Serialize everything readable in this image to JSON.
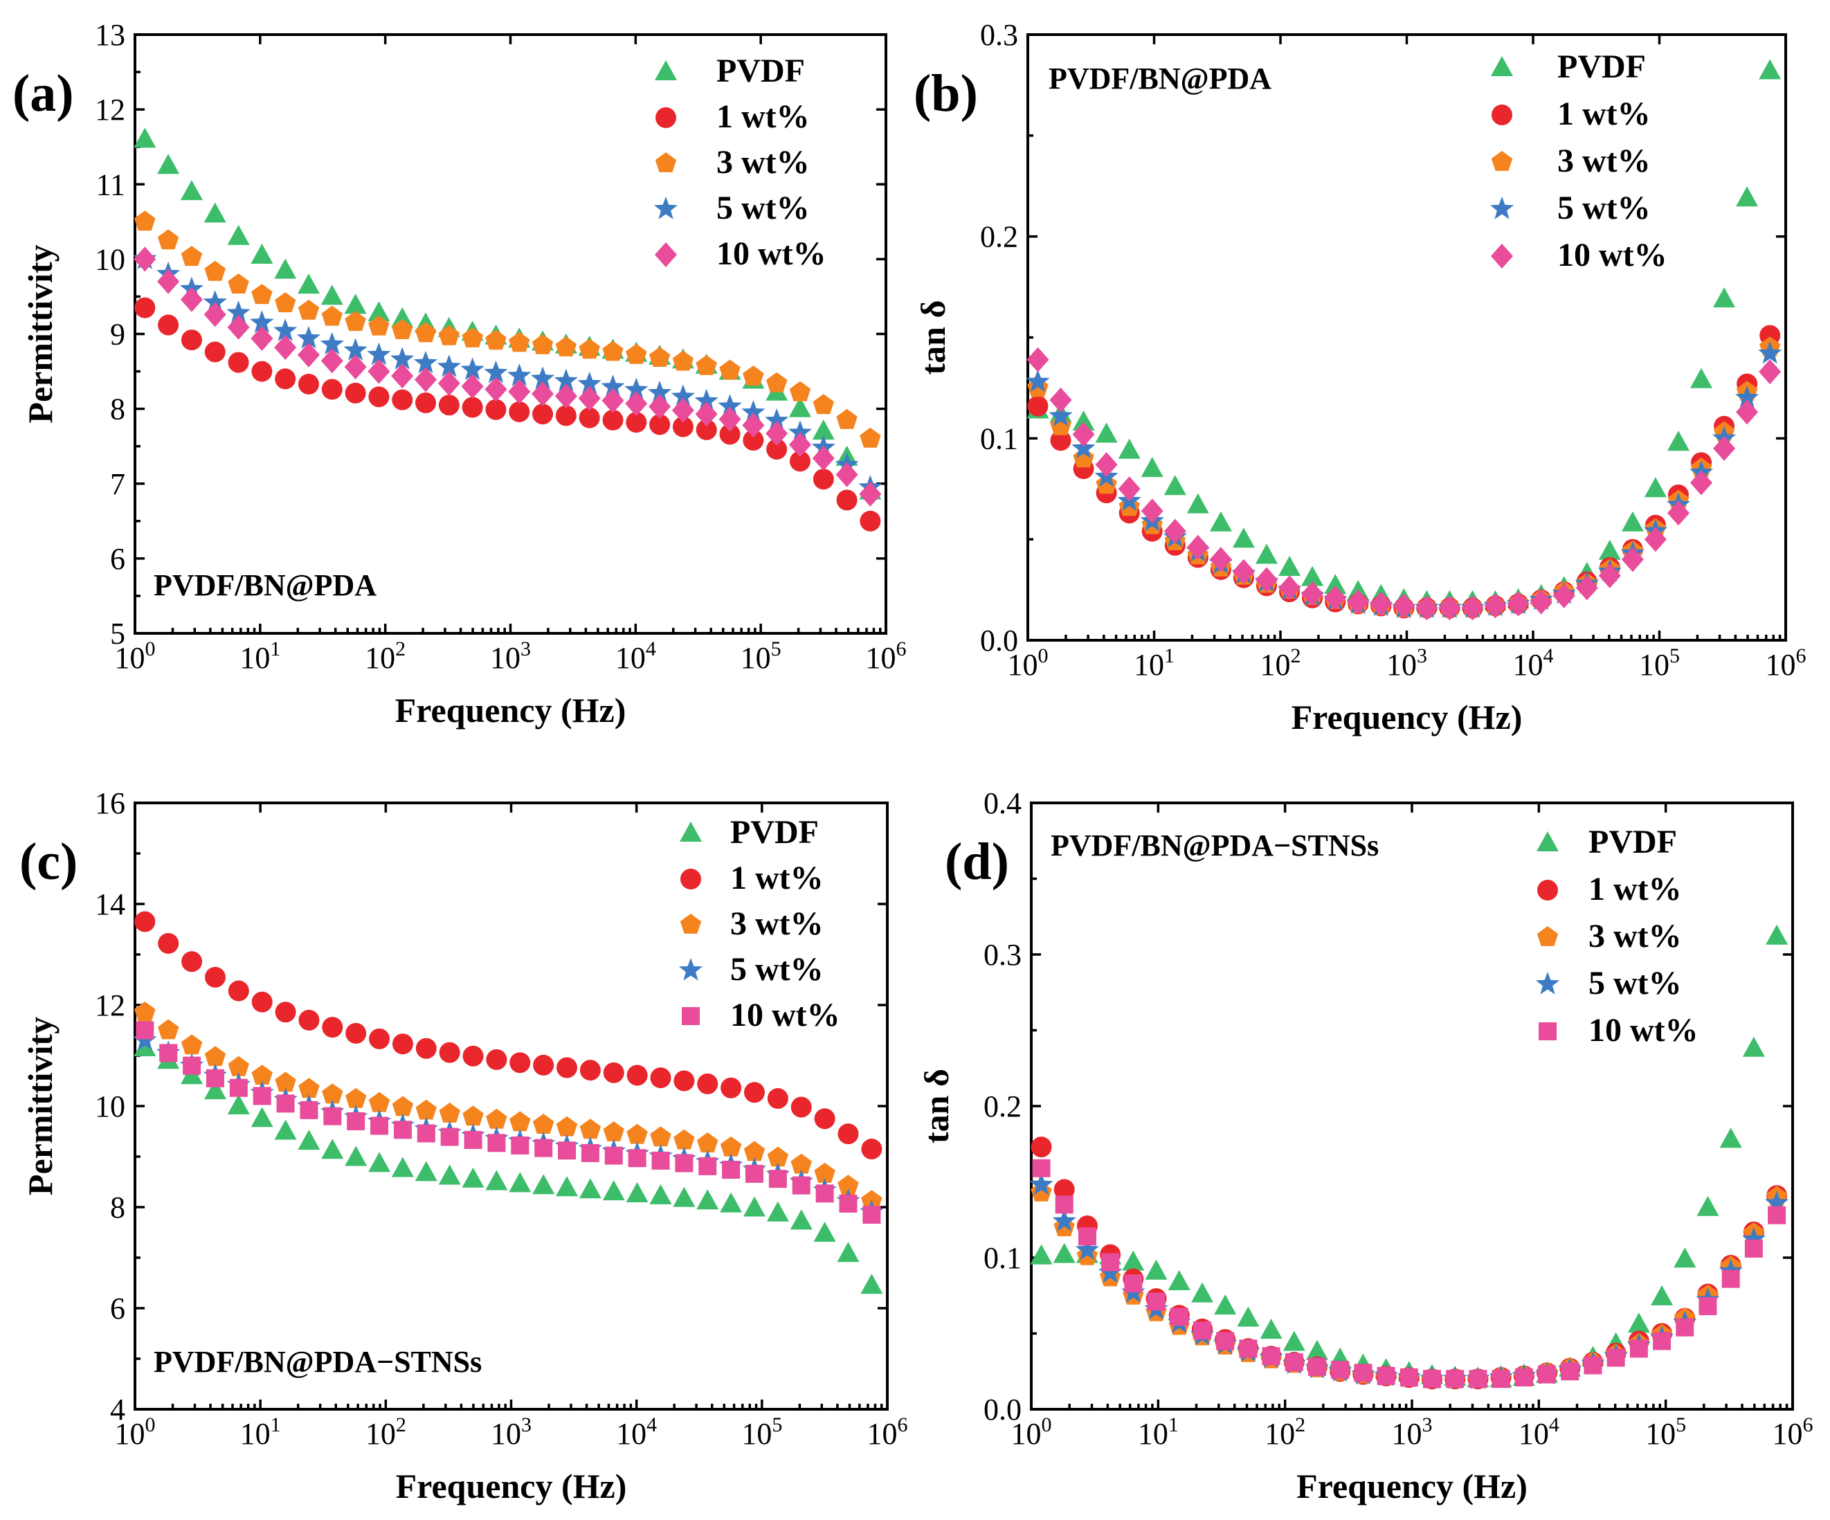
{
  "figure": {
    "series_styles": {
      "PVDF": {
        "marker": "triangle-up",
        "color": "#3dbd6a"
      },
      "1 wt%": {
        "marker": "circle",
        "color": "#e8262c"
      },
      "3 wt%": {
        "marker": "pentagon",
        "color": "#f5841f"
      },
      "5 wt%": {
        "marker": "star",
        "color": "#3d7cc4"
      },
      "10 wt% (a,b)": {
        "marker": "diamond",
        "color": "#e84c9a"
      },
      "10 wt% (c,d)": {
        "marker": "square",
        "color": "#e84c9a"
      }
    }
  },
  "chart_data": [
    {
      "panel": "(a)",
      "type": "scatter",
      "inner_title": "PVDF/BN@PDA",
      "xlabel": "Frequency (Hz)",
      "ylabel": "Permittivity",
      "xscale": "log",
      "xlim": [
        1,
        1000000
      ],
      "ylim": [
        5,
        13
      ],
      "xticks": [
        {
          "base": "10",
          "exp": "0"
        },
        {
          "base": "10",
          "exp": "1"
        },
        {
          "base": "10",
          "exp": "2"
        },
        {
          "base": "10",
          "exp": "3"
        },
        {
          "base": "10",
          "exp": "4"
        },
        {
          "base": "10",
          "exp": "5"
        },
        {
          "base": "10",
          "exp": "6"
        }
      ],
      "yticks": [
        "5",
        "6",
        "7",
        "8",
        "9",
        "10",
        "11",
        "12",
        "13"
      ],
      "legend_position": "top-right",
      "series": [
        {
          "name": "PVDF",
          "marker": "triangle-up",
          "color": "#3dbd6a",
          "values": [
            11.6,
            11.25,
            10.9,
            10.6,
            10.3,
            10.05,
            9.85,
            9.65,
            9.5,
            9.38,
            9.28,
            9.2,
            9.13,
            9.07,
            9.02,
            8.97,
            8.93,
            8.89,
            8.85,
            8.82,
            8.78,
            8.74,
            8.7,
            8.65,
            8.58,
            8.5,
            8.38,
            8.22,
            8.0,
            7.7,
            7.35,
            6.9
          ]
        },
        {
          "name": "1 wt%",
          "marker": "circle",
          "color": "#e8262c",
          "values": [
            9.35,
            9.12,
            8.92,
            8.76,
            8.62,
            8.5,
            8.4,
            8.33,
            8.26,
            8.21,
            8.16,
            8.12,
            8.08,
            8.05,
            8.02,
            7.99,
            7.96,
            7.93,
            7.91,
            7.88,
            7.85,
            7.82,
            7.79,
            7.76,
            7.72,
            7.66,
            7.58,
            7.46,
            7.3,
            7.06,
            6.78,
            6.5
          ]
        },
        {
          "name": "3 wt%",
          "marker": "pentagon",
          "color": "#f5841f",
          "values": [
            10.5,
            10.25,
            10.03,
            9.83,
            9.66,
            9.52,
            9.41,
            9.31,
            9.23,
            9.16,
            9.1,
            9.05,
            9.01,
            8.97,
            8.94,
            8.91,
            8.88,
            8.85,
            8.82,
            8.79,
            8.76,
            8.72,
            8.68,
            8.63,
            8.57,
            8.51,
            8.43,
            8.34,
            8.22,
            8.05,
            7.85,
            7.6
          ]
        },
        {
          "name": "5 wt%",
          "marker": "star",
          "color": "#3d7cc4",
          "values": [
            10.0,
            9.8,
            9.6,
            9.42,
            9.28,
            9.15,
            9.04,
            8.94,
            8.86,
            8.78,
            8.72,
            8.66,
            8.61,
            8.56,
            8.52,
            8.48,
            8.44,
            8.4,
            8.37,
            8.33,
            8.29,
            8.25,
            8.21,
            8.16,
            8.1,
            8.03,
            7.95,
            7.84,
            7.68,
            7.48,
            7.25,
            6.95
          ]
        },
        {
          "name": "10 wt%",
          "marker": "diamond",
          "color": "#e84c9a",
          "values": [
            10.0,
            9.7,
            9.46,
            9.26,
            9.09,
            8.94,
            8.82,
            8.72,
            8.64,
            8.56,
            8.5,
            8.44,
            8.39,
            8.34,
            8.3,
            8.26,
            8.23,
            8.2,
            8.17,
            8.14,
            8.11,
            8.07,
            8.03,
            7.98,
            7.93,
            7.86,
            7.78,
            7.67,
            7.52,
            7.34,
            7.12,
            6.86
          ]
        }
      ]
    },
    {
      "panel": "(b)",
      "type": "scatter",
      "inner_title": "PVDF/BN@PDA",
      "xlabel": "Frequency (Hz)",
      "ylabel": "tan δ",
      "xscale": "log",
      "xlim": [
        1,
        1000000
      ],
      "ylim": [
        0.0,
        0.3
      ],
      "xticks": [
        {
          "base": "10",
          "exp": "0"
        },
        {
          "base": "10",
          "exp": "1"
        },
        {
          "base": "10",
          "exp": "2"
        },
        {
          "base": "10",
          "exp": "3"
        },
        {
          "base": "10",
          "exp": "4"
        },
        {
          "base": "10",
          "exp": "5"
        },
        {
          "base": "10",
          "exp": "6"
        }
      ],
      "yticks": [
        "0.0",
        "0.1",
        "0.2",
        "0.3"
      ],
      "legend_position": "top-right",
      "series": [
        {
          "name": "PVDF",
          "marker": "triangle-up",
          "color": "#3dbd6a",
          "values": [
            0.114,
            0.112,
            0.108,
            0.102,
            0.094,
            0.085,
            0.076,
            0.067,
            0.058,
            0.05,
            0.042,
            0.036,
            0.031,
            0.027,
            0.024,
            0.022,
            0.02,
            0.019,
            0.019,
            0.019,
            0.019,
            0.02,
            0.022,
            0.026,
            0.033,
            0.044,
            0.058,
            0.075,
            0.098,
            0.129,
            0.169,
            0.219,
            0.282
          ]
        },
        {
          "name": "1 wt%",
          "marker": "circle",
          "color": "#e8262c",
          "values": [
            0.116,
            0.099,
            0.085,
            0.073,
            0.063,
            0.054,
            0.047,
            0.041,
            0.035,
            0.031,
            0.027,
            0.024,
            0.021,
            0.019,
            0.018,
            0.017,
            0.016,
            0.016,
            0.016,
            0.016,
            0.017,
            0.018,
            0.02,
            0.024,
            0.029,
            0.036,
            0.045,
            0.057,
            0.072,
            0.088,
            0.106,
            0.127,
            0.151
          ]
        },
        {
          "name": "3 wt%",
          "marker": "pentagon",
          "color": "#f5841f",
          "values": [
            0.125,
            0.106,
            0.09,
            0.077,
            0.066,
            0.057,
            0.049,
            0.042,
            0.036,
            0.032,
            0.028,
            0.025,
            0.022,
            0.02,
            0.018,
            0.017,
            0.016,
            0.016,
            0.016,
            0.016,
            0.017,
            0.018,
            0.02,
            0.024,
            0.028,
            0.035,
            0.044,
            0.055,
            0.069,
            0.085,
            0.103,
            0.123,
            0.145
          ]
        },
        {
          "name": "5 wt%",
          "marker": "star",
          "color": "#3d7cc4",
          "values": [
            0.128,
            0.111,
            0.095,
            0.081,
            0.069,
            0.059,
            0.051,
            0.044,
            0.038,
            0.033,
            0.029,
            0.025,
            0.022,
            0.02,
            0.018,
            0.017,
            0.016,
            0.016,
            0.016,
            0.016,
            0.017,
            0.018,
            0.02,
            0.023,
            0.028,
            0.034,
            0.043,
            0.054,
            0.067,
            0.083,
            0.1,
            0.12,
            0.142
          ]
        },
        {
          "name": "10 wt%",
          "marker": "diamond",
          "color": "#e84c9a",
          "values": [
            0.139,
            0.119,
            0.102,
            0.087,
            0.075,
            0.064,
            0.054,
            0.046,
            0.04,
            0.034,
            0.03,
            0.026,
            0.023,
            0.021,
            0.019,
            0.018,
            0.017,
            0.016,
            0.016,
            0.016,
            0.017,
            0.018,
            0.019,
            0.022,
            0.026,
            0.032,
            0.04,
            0.05,
            0.063,
            0.078,
            0.095,
            0.113,
            0.133
          ]
        }
      ]
    },
    {
      "panel": "(c)",
      "type": "scatter",
      "inner_title": "PVDF/BN@PDA−STNSs",
      "xlabel": "Frequency (Hz)",
      "ylabel": "Permittivity",
      "xscale": "log",
      "xlim": [
        1,
        1000000
      ],
      "ylim": [
        4,
        16
      ],
      "xticks": [
        {
          "base": "10",
          "exp": "0"
        },
        {
          "base": "10",
          "exp": "1"
        },
        {
          "base": "10",
          "exp": "2"
        },
        {
          "base": "10",
          "exp": "3"
        },
        {
          "base": "10",
          "exp": "4"
        },
        {
          "base": "10",
          "exp": "5"
        },
        {
          "base": "10",
          "exp": "6"
        }
      ],
      "yticks": [
        "4",
        "6",
        "8",
        "10",
        "12",
        "14",
        "16"
      ],
      "legend_position": "top-right",
      "series": [
        {
          "name": "PVDF",
          "marker": "triangle-up",
          "color": "#3dbd6a",
          "values": [
            11.15,
            10.9,
            10.6,
            10.3,
            10.0,
            9.75,
            9.5,
            9.3,
            9.12,
            8.98,
            8.86,
            8.76,
            8.68,
            8.61,
            8.55,
            8.5,
            8.46,
            8.42,
            8.38,
            8.34,
            8.3,
            8.26,
            8.22,
            8.17,
            8.12,
            8.06,
            7.98,
            7.88,
            7.72,
            7.48,
            7.08,
            6.45
          ]
        },
        {
          "name": "1 wt%",
          "marker": "circle",
          "color": "#e8262c",
          "values": [
            13.65,
            13.22,
            12.86,
            12.55,
            12.28,
            12.06,
            11.86,
            11.7,
            11.56,
            11.44,
            11.33,
            11.23,
            11.14,
            11.06,
            10.99,
            10.92,
            10.86,
            10.81,
            10.76,
            10.71,
            10.66,
            10.61,
            10.56,
            10.5,
            10.44,
            10.36,
            10.27,
            10.15,
            9.98,
            9.75,
            9.45,
            9.15
          ]
        },
        {
          "name": "3 wt%",
          "marker": "pentagon",
          "color": "#f5841f",
          "values": [
            11.85,
            11.5,
            11.2,
            10.97,
            10.77,
            10.6,
            10.46,
            10.34,
            10.23,
            10.14,
            10.06,
            9.98,
            9.91,
            9.85,
            9.79,
            9.73,
            9.68,
            9.63,
            9.58,
            9.53,
            9.48,
            9.43,
            9.38,
            9.32,
            9.26,
            9.18,
            9.09,
            8.98,
            8.84,
            8.66,
            8.42,
            8.12
          ]
        },
        {
          "name": "5 wt%",
          "marker": "star",
          "color": "#3d7cc4",
          "values": [
            11.3,
            11.05,
            10.8,
            10.6,
            10.42,
            10.26,
            10.12,
            9.99,
            9.88,
            9.78,
            9.69,
            9.61,
            9.54,
            9.47,
            9.41,
            9.35,
            9.3,
            9.25,
            9.2,
            9.15,
            9.1,
            9.05,
            9.0,
            8.95,
            8.89,
            8.82,
            8.74,
            8.64,
            8.5,
            8.33,
            8.12,
            7.9
          ]
        },
        {
          "name": "10 wt%",
          "marker": "square",
          "color": "#e84c9a",
          "values": [
            11.5,
            11.05,
            10.8,
            10.55,
            10.36,
            10.2,
            10.05,
            9.92,
            9.8,
            9.7,
            9.61,
            9.53,
            9.46,
            9.39,
            9.33,
            9.27,
            9.22,
            9.17,
            9.12,
            9.07,
            9.02,
            8.97,
            8.92,
            8.87,
            8.81,
            8.74,
            8.66,
            8.56,
            8.43,
            8.27,
            8.07,
            7.85
          ]
        }
      ]
    },
    {
      "panel": "(d)",
      "type": "scatter",
      "inner_title": "PVDF/BN@PDA−STNSs",
      "xlabel": "Frequency (Hz)",
      "ylabel": "tan δ",
      "xscale": "log",
      "xlim": [
        1,
        1000000
      ],
      "ylim": [
        0.0,
        0.4
      ],
      "xticks": [
        {
          "base": "10",
          "exp": "0"
        },
        {
          "base": "10",
          "exp": "1"
        },
        {
          "base": "10",
          "exp": "2"
        },
        {
          "base": "10",
          "exp": "3"
        },
        {
          "base": "10",
          "exp": "4"
        },
        {
          "base": "10",
          "exp": "5"
        },
        {
          "base": "10",
          "exp": "6"
        }
      ],
      "yticks": [
        "0.0",
        "0.1",
        "0.2",
        "0.3",
        "0.4"
      ],
      "legend_position": "top-right",
      "series": [
        {
          "name": "PVDF",
          "marker": "triangle-up",
          "color": "#3dbd6a",
          "values": [
            0.101,
            0.102,
            0.102,
            0.101,
            0.097,
            0.091,
            0.084,
            0.076,
            0.068,
            0.06,
            0.052,
            0.044,
            0.038,
            0.033,
            0.029,
            0.026,
            0.024,
            0.022,
            0.021,
            0.02,
            0.02,
            0.021,
            0.023,
            0.027,
            0.034,
            0.043,
            0.056,
            0.074,
            0.099,
            0.133,
            0.178,
            0.238,
            0.312
          ]
        },
        {
          "name": "1 wt%",
          "marker": "circle",
          "color": "#e8262c",
          "values": [
            0.173,
            0.145,
            0.121,
            0.102,
            0.086,
            0.073,
            0.062,
            0.053,
            0.046,
            0.04,
            0.035,
            0.031,
            0.028,
            0.025,
            0.023,
            0.022,
            0.021,
            0.02,
            0.02,
            0.02,
            0.021,
            0.022,
            0.024,
            0.027,
            0.031,
            0.037,
            0.045,
            0.05,
            0.06,
            0.076,
            0.095,
            0.117,
            0.141
          ]
        },
        {
          "name": "3 wt%",
          "marker": "pentagon",
          "color": "#f5841f",
          "values": [
            0.143,
            0.12,
            0.101,
            0.087,
            0.075,
            0.064,
            0.055,
            0.048,
            0.042,
            0.037,
            0.033,
            0.03,
            0.027,
            0.025,
            0.023,
            0.022,
            0.021,
            0.02,
            0.02,
            0.02,
            0.021,
            0.022,
            0.024,
            0.027,
            0.031,
            0.036,
            0.043,
            0.049,
            0.06,
            0.075,
            0.094,
            0.116,
            0.14
          ]
        },
        {
          "name": "5 wt%",
          "marker": "star",
          "color": "#3d7cc4",
          "values": [
            0.148,
            0.124,
            0.105,
            0.09,
            0.077,
            0.066,
            0.057,
            0.049,
            0.043,
            0.038,
            0.034,
            0.03,
            0.027,
            0.025,
            0.023,
            0.022,
            0.021,
            0.02,
            0.02,
            0.02,
            0.021,
            0.022,
            0.023,
            0.026,
            0.03,
            0.035,
            0.042,
            0.047,
            0.057,
            0.072,
            0.091,
            0.112,
            0.136
          ]
        },
        {
          "name": "10 wt%",
          "marker": "square",
          "color": "#e84c9a",
          "values": [
            0.159,
            0.135,
            0.114,
            0.097,
            0.083,
            0.071,
            0.061,
            0.052,
            0.045,
            0.04,
            0.035,
            0.031,
            0.028,
            0.026,
            0.024,
            0.022,
            0.021,
            0.02,
            0.02,
            0.02,
            0.02,
            0.021,
            0.023,
            0.025,
            0.029,
            0.034,
            0.04,
            0.045,
            0.054,
            0.068,
            0.086,
            0.106,
            0.128
          ]
        }
      ]
    }
  ]
}
